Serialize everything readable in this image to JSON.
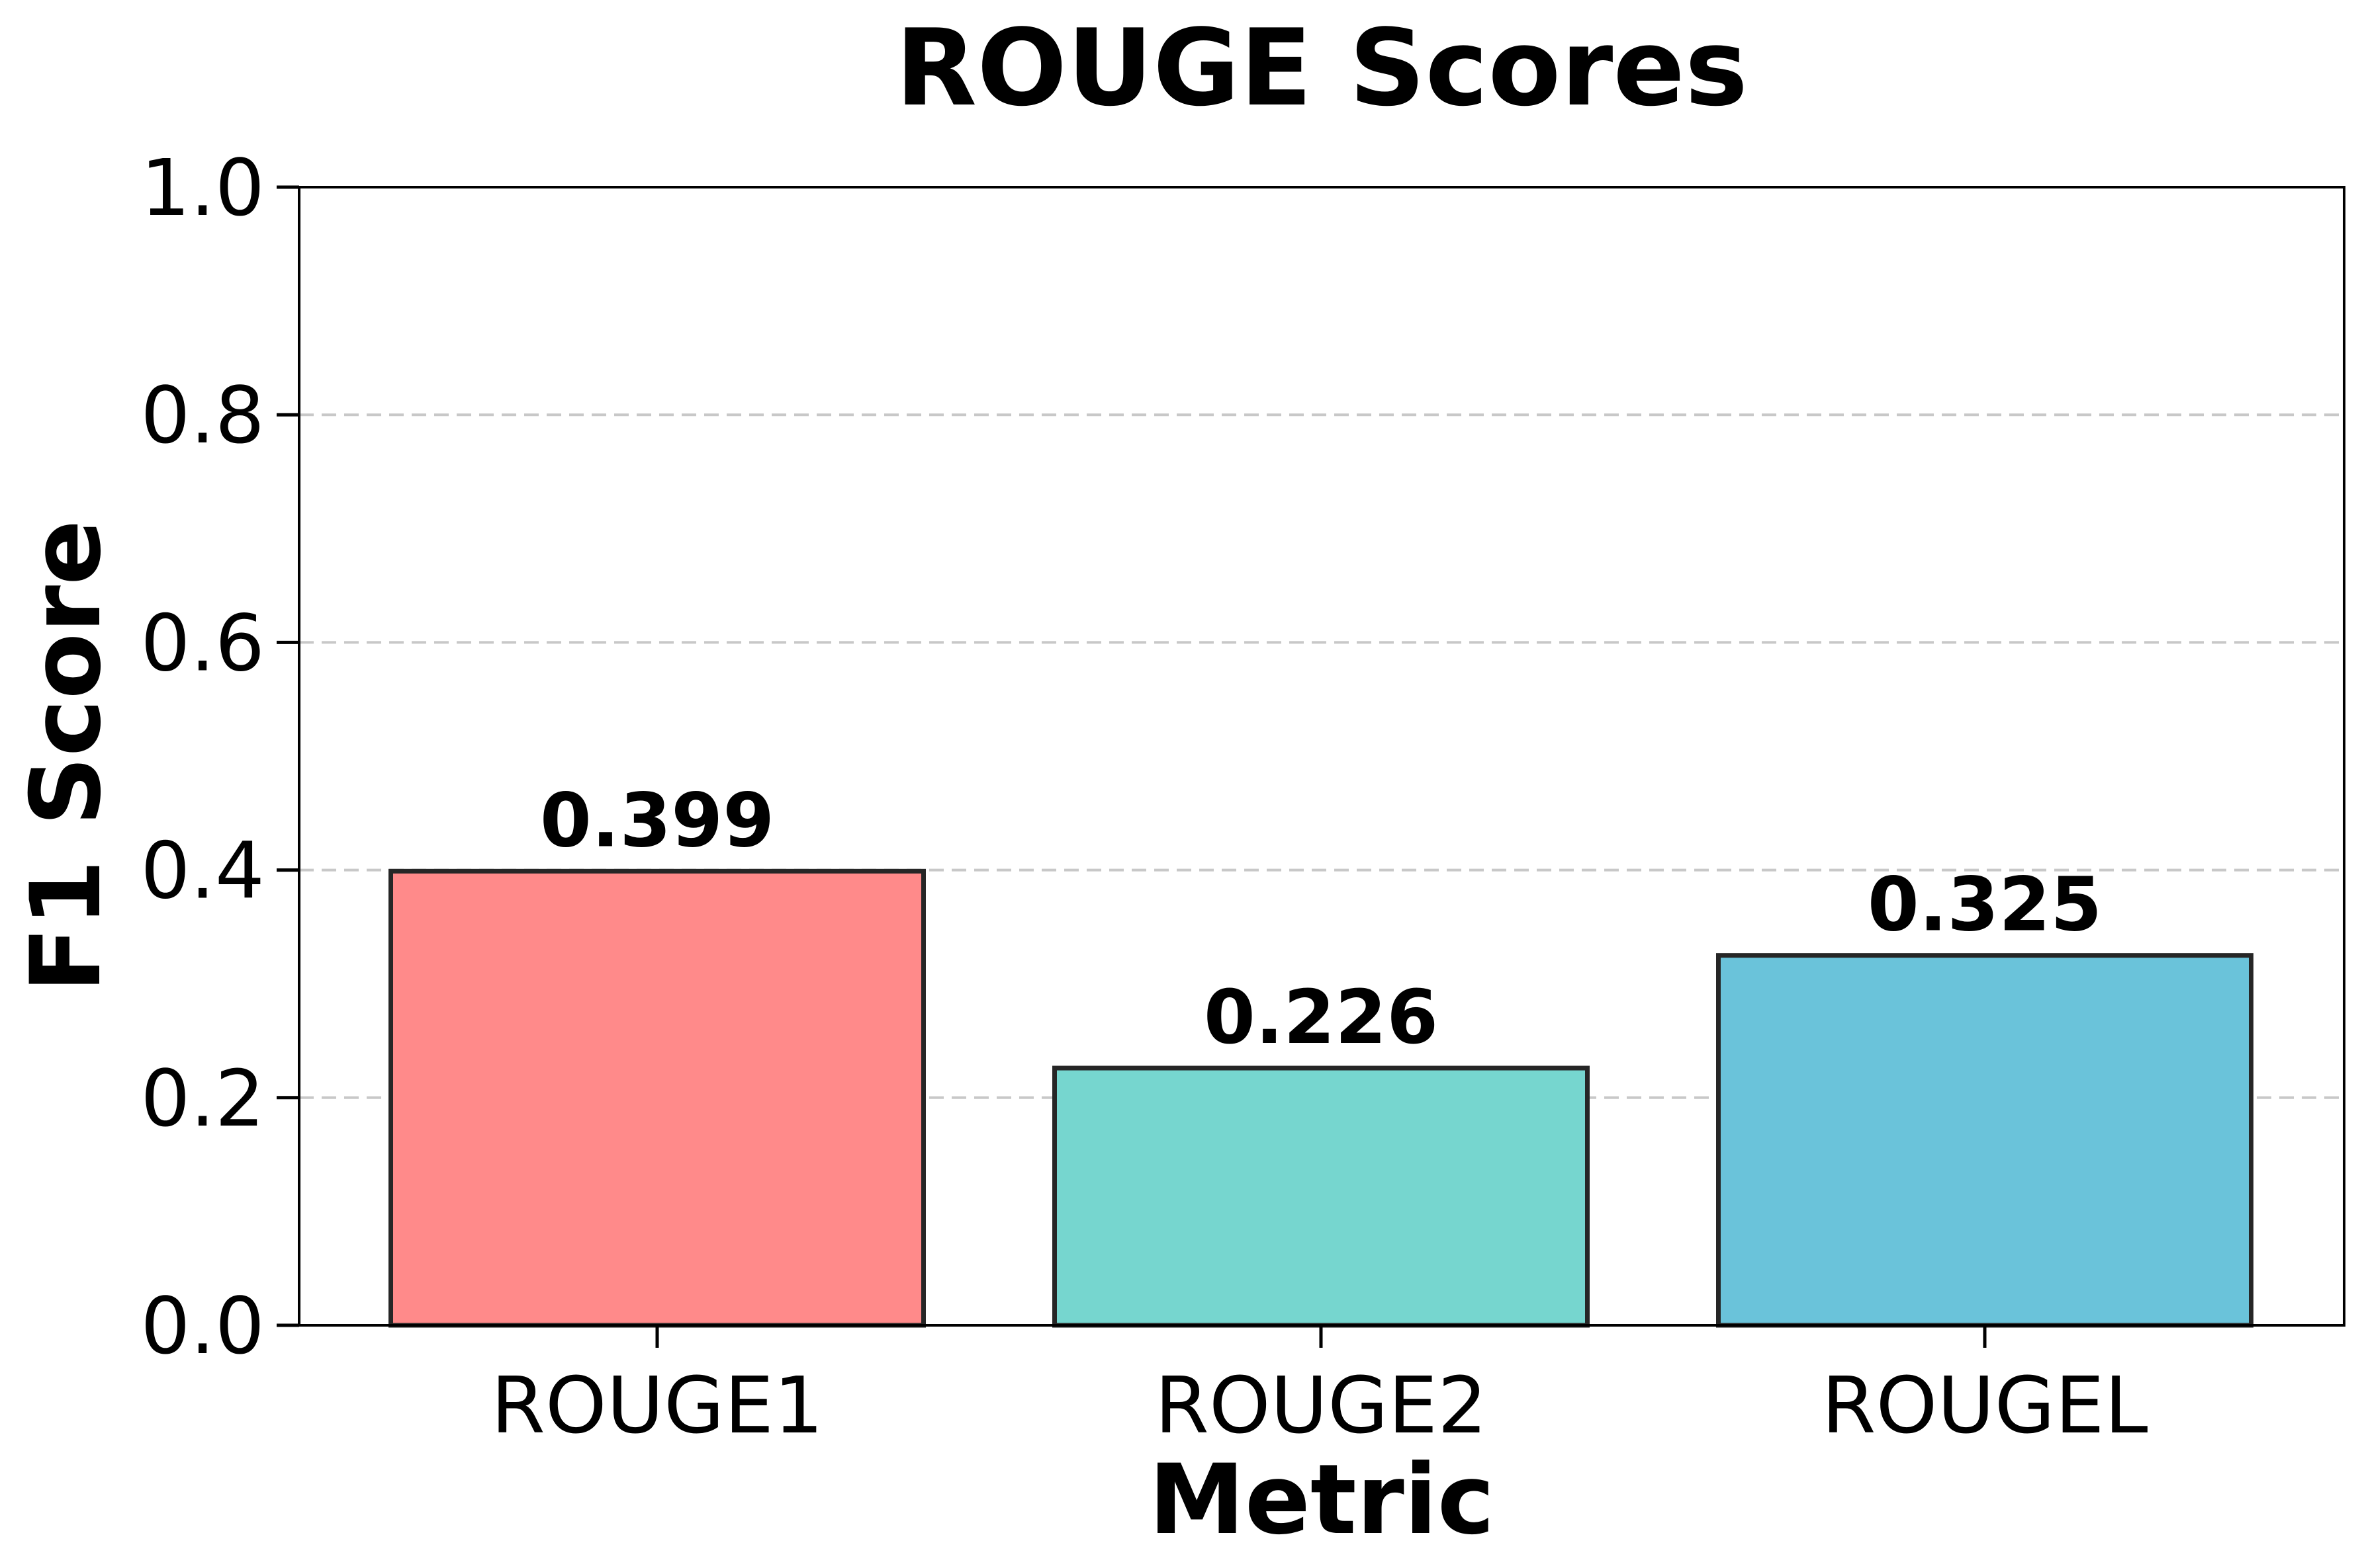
{
  "chart_data": {
    "type": "bar",
    "title": "ROUGE Scores",
    "xlabel": "Metric",
    "ylabel": "F1 Score",
    "categories": [
      "ROUGE1",
      "ROUGE2",
      "ROUGEL"
    ],
    "values": [
      0.399,
      0.226,
      0.325
    ],
    "value_labels": [
      "0.399",
      "0.226",
      "0.325"
    ],
    "bar_colors": [
      "#ff8a8a",
      "#76d6cf",
      "#6ac3da"
    ],
    "bar_edge_color": "#262626",
    "ylim": [
      0,
      1.0
    ],
    "yticks": [
      0.0,
      0.2,
      0.4,
      0.6,
      0.8,
      1.0
    ],
    "ytick_labels": [
      "0.0",
      "0.2",
      "0.4",
      "0.6",
      "0.8",
      "1.0"
    ],
    "grid": "y-dashed",
    "legend": "none"
  }
}
